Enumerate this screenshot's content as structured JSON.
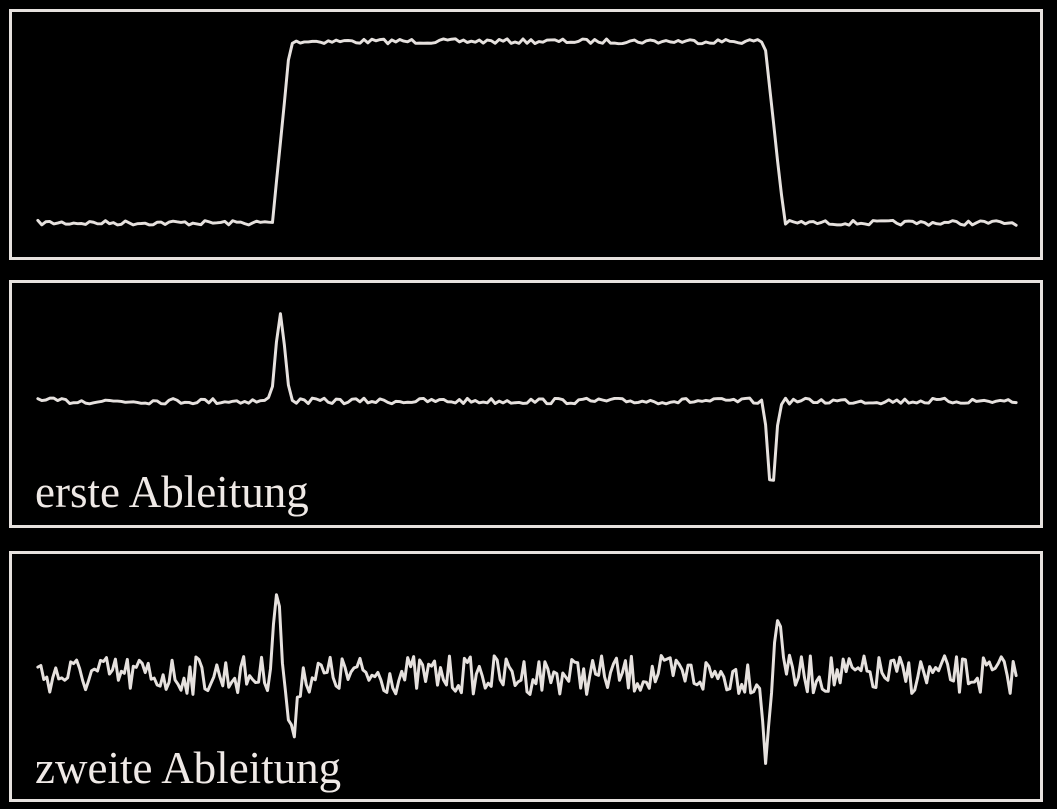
{
  "panels": [
    {
      "id": "signal",
      "label": "",
      "trace": "step-pulse"
    },
    {
      "id": "first",
      "label": "erste Ableitung",
      "trace": "first-derivative"
    },
    {
      "id": "second",
      "label": "zweite Ableitung",
      "trace": "second-derivative"
    }
  ],
  "colors": {
    "background": "#000000",
    "stroke": "#e6e1de"
  }
}
